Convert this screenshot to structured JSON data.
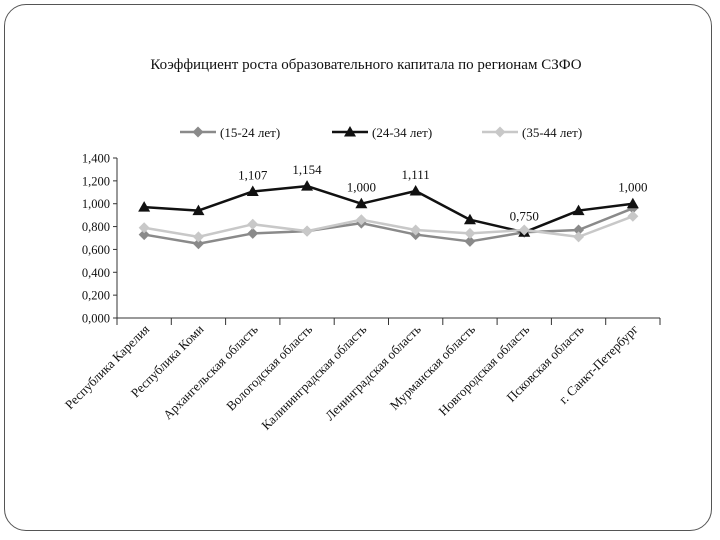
{
  "chart_data": {
    "type": "line",
    "title": "Коэффициент роста образовательного капитала по регионам СЗФО",
    "categories": [
      "Республика Карелия",
      "Республика Коми",
      "Архангельская область",
      "Вологодская область",
      "Калининградская область",
      "Ленинградская область",
      "Мурманская область",
      "Новгородская область",
      "Псковская область",
      "г. Санкт-Петербург"
    ],
    "series": [
      {
        "name": "(15-24 лет)",
        "color": "#8a8a8a",
        "marker": "diamond",
        "values": [
          0.73,
          0.65,
          0.74,
          0.76,
          0.83,
          0.73,
          0.67,
          0.75,
          0.77,
          0.96
        ]
      },
      {
        "name": "(24-34 лет)",
        "color": "#111111",
        "marker": "triangle",
        "values": [
          0.97,
          0.94,
          1.107,
          1.154,
          1.0,
          1.111,
          0.86,
          0.75,
          0.94,
          1.0
        ]
      },
      {
        "name": "(35-44 лет)",
        "color": "#c8c8c8",
        "marker": "diamond",
        "values": [
          0.79,
          0.71,
          0.82,
          0.76,
          0.86,
          0.77,
          0.74,
          0.77,
          0.71,
          0.89
        ]
      }
    ],
    "data_labels": [
      {
        "series": 1,
        "index": 2,
        "text": "1,107"
      },
      {
        "series": 1,
        "index": 3,
        "text": "1,154"
      },
      {
        "series": 1,
        "index": 4,
        "text": "1,000"
      },
      {
        "series": 1,
        "index": 5,
        "text": "1,111"
      },
      {
        "series": 1,
        "index": 7,
        "text": "0,750"
      },
      {
        "series": 1,
        "index": 9,
        "text": "1,000"
      }
    ],
    "yticks": [
      "0,000",
      "0,200",
      "0,400",
      "0,600",
      "0,800",
      "1,000",
      "1,200",
      "1,400"
    ],
    "ylim": [
      0,
      1.4
    ],
    "xlabel": "",
    "ylabel": "",
    "legend_position": "top",
    "grid": false
  }
}
